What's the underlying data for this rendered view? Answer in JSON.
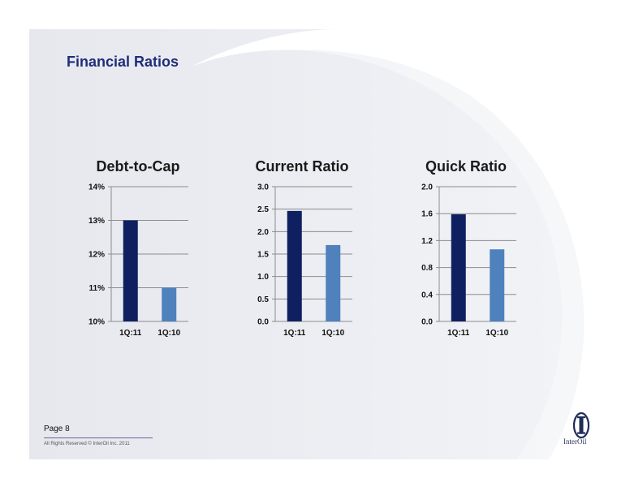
{
  "page": {
    "title": "Financial Ratios",
    "page_label": "Page 8",
    "copyright": "All Rights Reserved © InterOil Inc. 2011",
    "logo_text": "InterOil"
  },
  "colors": {
    "series_1": "#0f2060",
    "series_2": "#4f81bd",
    "title_blue": "#1f2d7a"
  },
  "chart_data": [
    {
      "type": "bar",
      "title": "Debt-to-Cap",
      "categories": [
        "1Q:11",
        "1Q:10"
      ],
      "values": [
        0.13,
        0.11
      ],
      "ylim": [
        0.1,
        0.14
      ],
      "yticks": [
        "10%",
        "11%",
        "12%",
        "13%",
        "14%"
      ],
      "ytick_values": [
        0.1,
        0.11,
        0.12,
        0.13,
        0.14
      ],
      "grid": true,
      "legend": "none"
    },
    {
      "type": "bar",
      "title": "Current Ratio",
      "categories": [
        "1Q:11",
        "1Q:10"
      ],
      "values": [
        2.46,
        1.7
      ],
      "ylim": [
        0,
        3.0
      ],
      "yticks": [
        "0.0",
        "0.5",
        "1.0",
        "1.5",
        "2.0",
        "2.5",
        "3.0"
      ],
      "ytick_values": [
        0,
        0.5,
        1.0,
        1.5,
        2.0,
        2.5,
        3.0
      ],
      "grid": true,
      "legend": "none"
    },
    {
      "type": "bar",
      "title": "Quick Ratio",
      "categories": [
        "1Q:11",
        "1Q:10"
      ],
      "values": [
        1.59,
        1.07
      ],
      "ylim": [
        0,
        2.0
      ],
      "yticks": [
        "0.0",
        "0.4",
        "0.8",
        "1.2",
        "1.6",
        "2.0"
      ],
      "ytick_values": [
        0,
        0.4,
        0.8,
        1.2,
        1.6,
        2.0
      ],
      "grid": true,
      "legend": "none"
    }
  ]
}
